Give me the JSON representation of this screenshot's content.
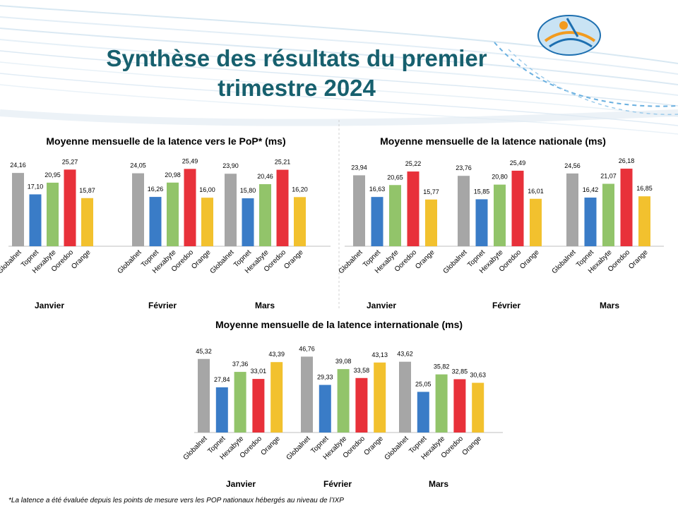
{
  "slide": {
    "title_line1": "Synthèse des résultats du premier",
    "title_line2": "trimestre 2024",
    "footnote": "*La latence a été évaluée depuis les points de mesure vers les POP nationaux hébergés au niveau de l’IXP"
  },
  "colors": {
    "Globalnet": "#a6a6a6",
    "Topnet": "#3a7cc7",
    "Hexabyte": "#92c46a",
    "Ooredoo": "#e8313a",
    "Orange": "#f2c12e",
    "title": "#17606e"
  },
  "chart_data": [
    {
      "type": "bar",
      "title": "Moyenne mensuelle de la latence vers le PoP* (ms)",
      "months": [
        "Janvier",
        "Février",
        "Mars"
      ],
      "operators": [
        "Globalnet",
        "Topnet",
        "Hexabyte",
        "Ooredoo",
        "Orange"
      ],
      "values": [
        [
          24.16,
          17.1,
          20.95,
          25.27,
          15.87
        ],
        [
          24.05,
          16.26,
          20.98,
          25.49,
          16.0
        ],
        [
          23.9,
          15.8,
          20.46,
          25.21,
          16.2
        ]
      ],
      "labels": [
        [
          "24,16",
          "17,10",
          "20,95",
          "25,27",
          "15,87"
        ],
        [
          "24,05",
          "16,26",
          "20,98",
          "25,49",
          "16,00"
        ],
        [
          "23,90",
          "15,80",
          "20,46",
          "25,21",
          "16,20"
        ]
      ]
    },
    {
      "type": "bar",
      "title": "Moyenne mensuelle de la latence nationale (ms)",
      "months": [
        "Janvier",
        "Février",
        "Mars"
      ],
      "operators": [
        "Globalnet",
        "Topnet",
        "Hexabyte",
        "Ooredoo",
        "Orange"
      ],
      "values": [
        [
          23.94,
          16.63,
          20.65,
          25.22,
          15.77
        ],
        [
          23.76,
          15.85,
          20.8,
          25.49,
          16.01
        ],
        [
          24.56,
          16.42,
          21.07,
          26.18,
          16.85
        ]
      ],
      "labels": [
        [
          "23,94",
          "16,63",
          "20,65",
          "25,22",
          "15,77"
        ],
        [
          "23,76",
          "15,85",
          "20,80",
          "25,49",
          "16,01"
        ],
        [
          "24,56",
          "16,42",
          "21,07",
          "26,18",
          "16,85"
        ]
      ]
    },
    {
      "type": "bar",
      "title": "Moyenne mensuelle de la latence internationale (ms)",
      "months": [
        "Janvier",
        "Février",
        "Mars"
      ],
      "operators": [
        "Globalnet",
        "Topnet",
        "Hexabyte",
        "Ooredoo",
        "Orange"
      ],
      "values": [
        [
          45.32,
          27.84,
          37.36,
          33.01,
          43.39
        ],
        [
          46.76,
          29.33,
          39.08,
          33.58,
          43.13
        ],
        [
          43.62,
          25.05,
          35.82,
          32.85,
          30.63
        ]
      ],
      "labels": [
        [
          "45,32",
          "27,84",
          "37,36",
          "33,01",
          "43,39"
        ],
        [
          "46,76",
          "29,33",
          "39,08",
          "33,58",
          "43,13"
        ],
        [
          "43,62",
          "25,05",
          "35,82",
          "32,85",
          "30,63"
        ]
      ]
    }
  ]
}
